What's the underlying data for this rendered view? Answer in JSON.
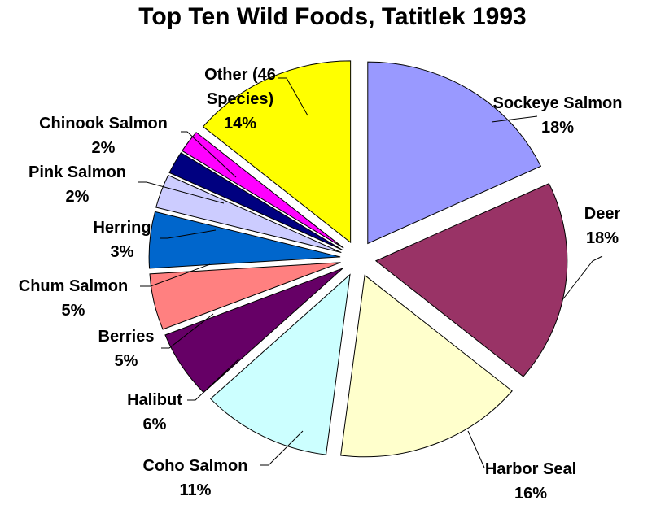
{
  "chart_data": {
    "type": "pie",
    "title": "Top Ten Wild Foods, Tatitlek 1993",
    "slices": [
      {
        "name": "Sockeye Salmon",
        "label_lines": [
          "Sockeye Salmon"
        ],
        "pct_label": "18%",
        "value": 18,
        "color": "#9999ff"
      },
      {
        "name": "Deer",
        "label_lines": [
          "Deer"
        ],
        "pct_label": "18%",
        "value": 18,
        "color": "#993366"
      },
      {
        "name": "Harbor Seal",
        "label_lines": [
          "Harbor Seal"
        ],
        "pct_label": "16%",
        "value": 16,
        "color": "#ffffcc"
      },
      {
        "name": "Coho Salmon",
        "label_lines": [
          "Coho Salmon"
        ],
        "pct_label": "11%",
        "value": 11,
        "color": "#ccffff"
      },
      {
        "name": "Halibut",
        "label_lines": [
          "Halibut"
        ],
        "pct_label": "6%",
        "value": 6,
        "color": "#660066"
      },
      {
        "name": "Berries",
        "label_lines": [
          "Berries"
        ],
        "pct_label": "5%",
        "value": 5,
        "color": "#ff8080"
      },
      {
        "name": "Chum Salmon",
        "label_lines": [
          "Chum Salmon"
        ],
        "pct_label": "5%",
        "value": 5,
        "color": "#0066cc"
      },
      {
        "name": "Herring",
        "label_lines": [
          "Herring"
        ],
        "pct_label": "3%",
        "value": 3,
        "color": "#ccccff"
      },
      {
        "name": "Pink Salmon",
        "label_lines": [
          "Pink Salmon"
        ],
        "pct_label": "2%",
        "value": 2,
        "color": "#000080"
      },
      {
        "name": "Chinook Salmon",
        "label_lines": [
          "Chinook Salmon"
        ],
        "pct_label": "2%",
        "value": 2,
        "color": "#ff00ff"
      },
      {
        "name": "Other (46 Species)",
        "label_lines": [
          "Other (46",
          "Species)"
        ],
        "pct_label": "14%",
        "value": 14,
        "color": "#ffff00"
      }
    ]
  }
}
